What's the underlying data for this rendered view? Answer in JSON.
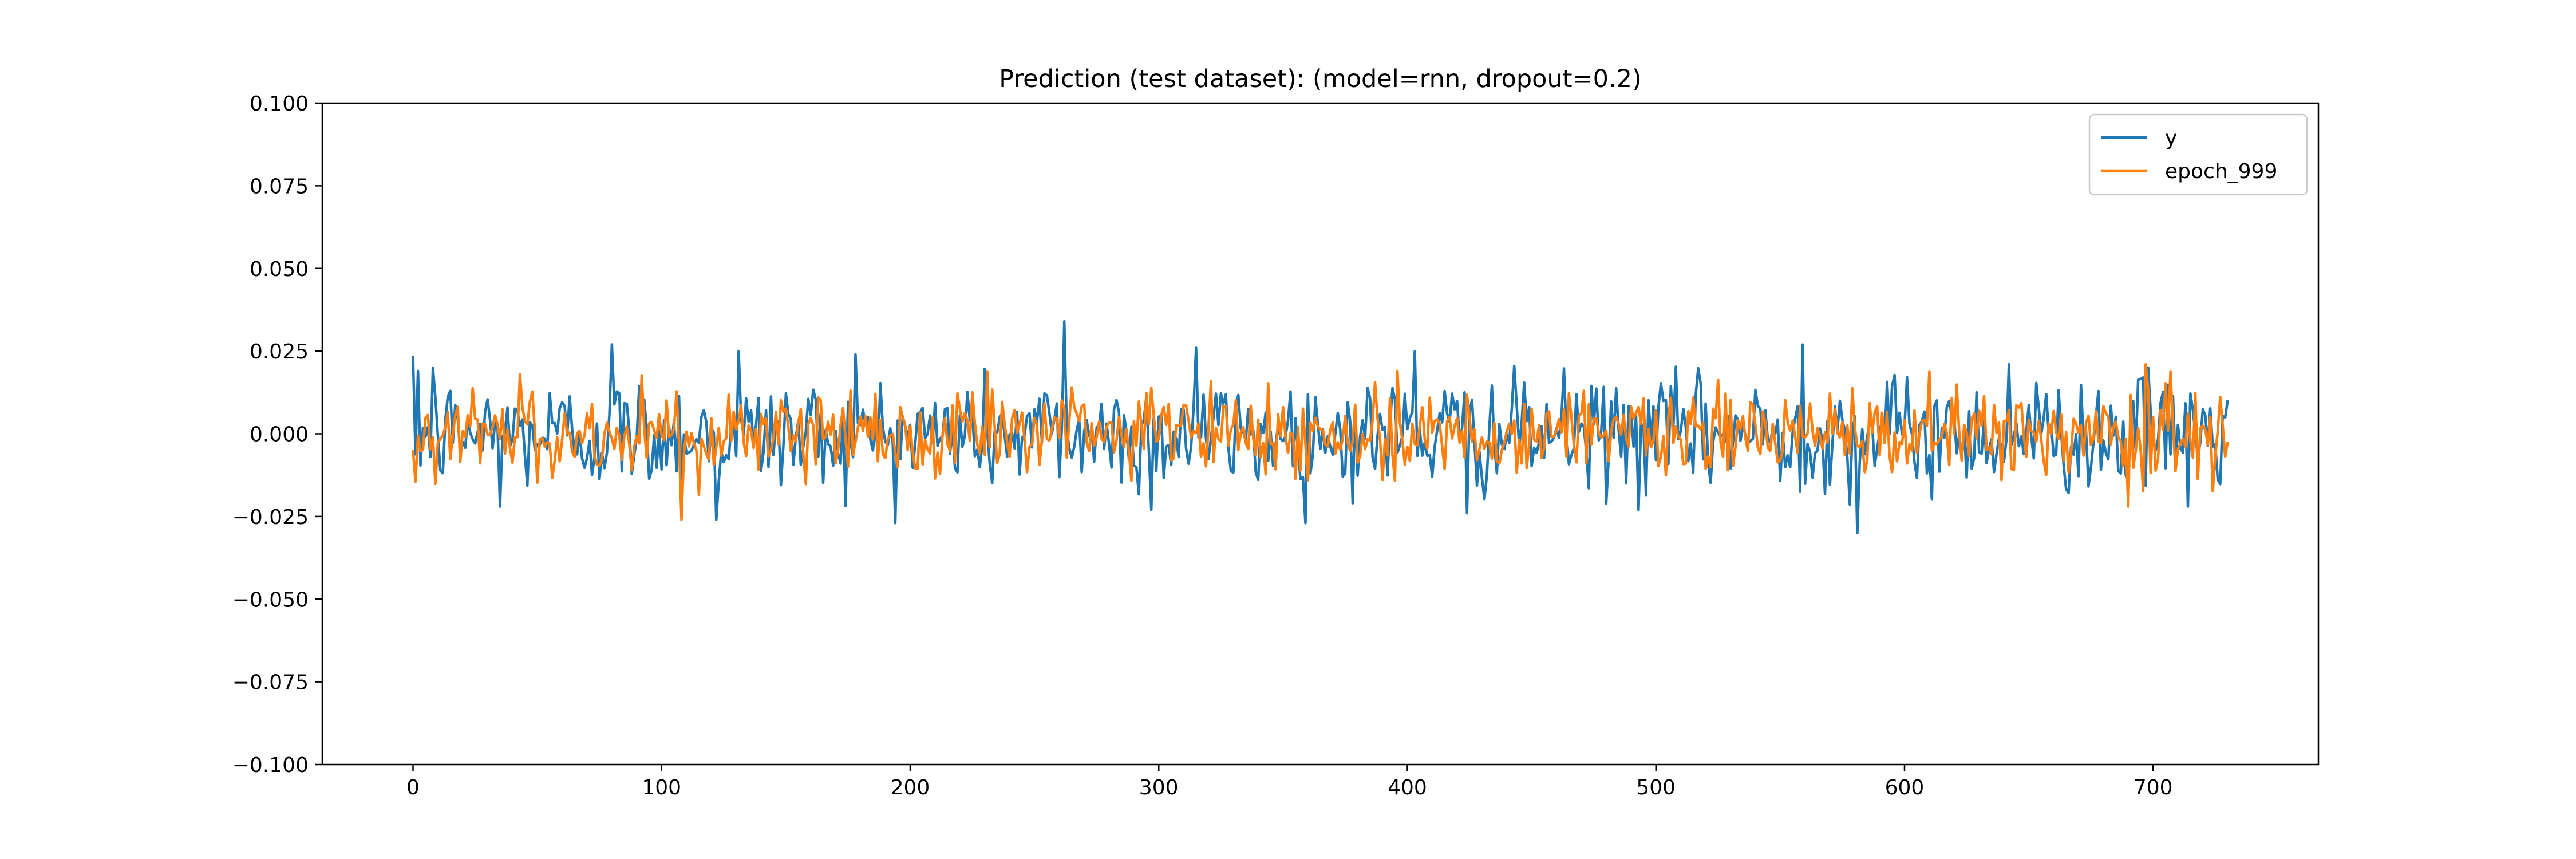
{
  "chart_data": {
    "type": "line",
    "title": "Prediction (test dataset): (model=rnn, dropout=0.2)",
    "xlabel": "",
    "ylabel": "",
    "xlim": [
      -36.5,
      766.5
    ],
    "ylim": [
      -0.1,
      0.1
    ],
    "x_ticks": [
      0,
      100,
      200,
      300,
      400,
      500,
      600,
      700
    ],
    "x_tick_labels": [
      "0",
      "100",
      "200",
      "300",
      "400",
      "500",
      "600",
      "700"
    ],
    "y_ticks": [
      0.1,
      0.075,
      0.05,
      0.025,
      0.0,
      -0.025,
      -0.05,
      -0.075,
      -0.1
    ],
    "y_tick_labels": [
      "0.100",
      "0.075",
      "0.050",
      "0.025",
      "0.000",
      "−0.025",
      "−0.050",
      "−0.075",
      "−0.100"
    ],
    "grid": false,
    "legend_position": "top-right",
    "x_start": 0,
    "x_end": 730,
    "series": [
      {
        "name": "y",
        "color": "#1f77b4",
        "n_points": 731,
        "approx_range": [
          -0.03,
          0.034
        ],
        "notable_points": [
          {
            "x": 2,
            "y": 0.019
          },
          {
            "x": 8,
            "y": 0.02
          },
          {
            "x": 35,
            "y": -0.022
          },
          {
            "x": 80,
            "y": 0.027
          },
          {
            "x": 122,
            "y": -0.026
          },
          {
            "x": 131,
            "y": 0.025
          },
          {
            "x": 178,
            "y": 0.024
          },
          {
            "x": 262,
            "y": 0.034
          },
          {
            "x": 297,
            "y": -0.023
          },
          {
            "x": 315,
            "y": 0.026
          },
          {
            "x": 403,
            "y": 0.025
          },
          {
            "x": 424,
            "y": -0.024
          },
          {
            "x": 493,
            "y": -0.023
          },
          {
            "x": 559,
            "y": 0.027
          },
          {
            "x": 581,
            "y": -0.03
          },
          {
            "x": 642,
            "y": 0.021
          },
          {
            "x": 696,
            "y": 0.017
          },
          {
            "x": 714,
            "y": -0.022
          }
        ]
      },
      {
        "name": "epoch_999",
        "color": "#ff7f0e",
        "n_points": 731,
        "approx_range": [
          -0.026,
          0.021
        ],
        "notable_points": [
          {
            "x": 43,
            "y": 0.018
          },
          {
            "x": 108,
            "y": -0.026
          },
          {
            "x": 265,
            "y": 0.014
          },
          {
            "x": 396,
            "y": 0.019
          },
          {
            "x": 471,
            "y": 0.013
          },
          {
            "x": 690,
            "y": -0.022
          },
          {
            "x": 697,
            "y": 0.021
          }
        ]
      }
    ]
  }
}
